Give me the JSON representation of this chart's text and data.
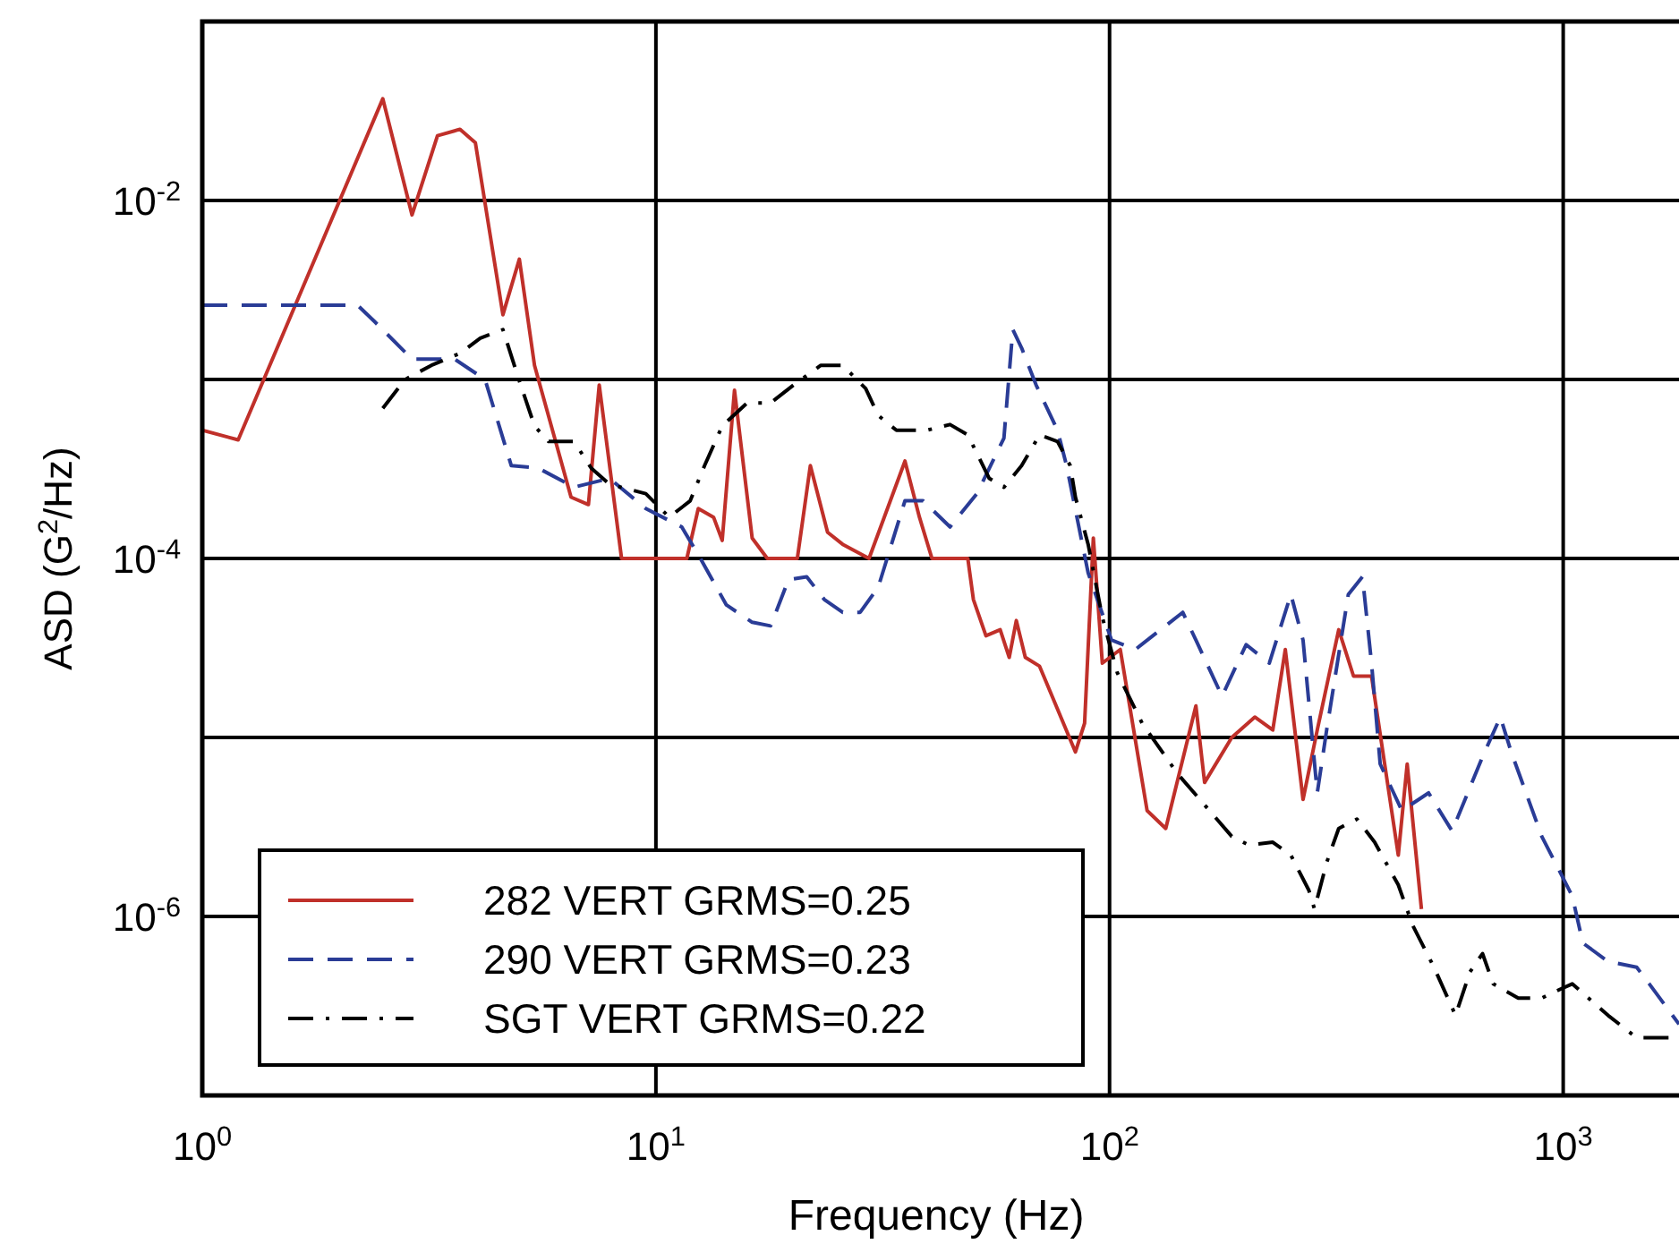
{
  "chart_data": {
    "type": "line",
    "xlabel": "Frequency (Hz)",
    "ylabel": "ASD (G$^{2}$/Hz)",
    "log": "xy",
    "grid": true,
    "legend": "bottom left",
    "xlim": [
      1,
      1800
    ],
    "ylim": [
      1e-07,
      0.1
    ],
    "xticks": [
      {
        "value": 1,
        "label": "10$^{0}$"
      },
      {
        "value": 10,
        "label": "10$^{1}$"
      },
      {
        "value": 100,
        "label": "10$^{2}$"
      },
      {
        "value": 1000,
        "label": "10$^{3}$"
      }
    ],
    "yticks": [
      {
        "value": 1e-06,
        "label": "10$^{-6}$"
      },
      {
        "value": 1e-05,
        "label": null
      },
      {
        "value": 0.0001,
        "label": "10$^{-4}$"
      },
      {
        "value": 0.001,
        "label": null
      },
      {
        "value": 0.01,
        "label": "10$^{-2}$"
      }
    ],
    "series": [
      {
        "name": "282 VERT GRMS=0.25",
        "color": "#c0302a",
        "line_style": "solid",
        "x": [
          1,
          1.2,
          2.5,
          2.9,
          3.3,
          3.7,
          4,
          4.6,
          5,
          5.4,
          6.5,
          7.1,
          7.5,
          8.4,
          11.7,
          12.4,
          13.4,
          14,
          14.9,
          16.3,
          17.6,
          20.5,
          21.9,
          23.9,
          25.8,
          29.5,
          35.4,
          38.1,
          40.6,
          48.7,
          50.1,
          53.4,
          57.4,
          60.1,
          62.3,
          65.2,
          70.1,
          84.1,
          88.1,
          92.1,
          96.4,
          105.6,
          121,
          133,
          155,
          162,
          186,
          209,
          229,
          244,
          267,
          287,
          320,
          345,
          378,
          433,
          453,
          487
        ],
        "values": [
          0.00052,
          0.00046,
          0.037,
          0.0083,
          0.023,
          0.025,
          0.021,
          0.0023,
          0.0047,
          0.0012,
          0.00022,
          0.0002,
          0.00093,
          0.0001,
          0.0001,
          0.00019,
          0.00017,
          0.000126,
          0.00087,
          0.00013,
          0.0001,
          0.0001,
          0.00033,
          0.00014,
          0.00012,
          0.0001,
          0.00035,
          0.00017,
          0.0001,
          0.0001,
          5.9e-05,
          3.7e-05,
          4e-05,
          2.8e-05,
          4.5e-05,
          2.8e-05,
          2.5e-05,
          8.3e-06,
          1.2e-05,
          0.00013,
          2.6e-05,
          3.1e-05,
          3.9e-06,
          3.1e-06,
          1.5e-05,
          5.6e-06,
          1e-05,
          1.3e-05,
          1.1e-05,
          3.1e-05,
          4.5e-06,
          1.1e-05,
          4e-05,
          2.2e-05,
          2.2e-05,
          2.2e-06,
          7.1e-06,
          1.1e-06
        ]
      },
      {
        "name": "290 VERT GRMS=0.23",
        "color": "#2a3c96",
        "line_style": "dashed",
        "x": [
          1,
          2.2,
          2.4,
          2.9,
          3.6,
          4.2,
          4.6,
          4.8,
          5.5,
          6.6,
          7.9,
          9.5,
          11.4,
          12.4,
          14.3,
          16.3,
          17.9,
          19.6,
          21.5,
          23.5,
          25.8,
          28.2,
          30.9,
          35.4,
          38.8,
          44.5,
          51,
          58.5,
          61.2,
          64,
          68.9,
          76.8,
          80.4,
          89.7,
          101,
          114,
          145,
          155,
          177,
          200,
          225,
          251,
          267,
          287,
          301,
          336,
          361,
          378,
          395,
          441,
          505,
          569,
          664,
          727,
          768,
          897,
          1047,
          1105,
          1256,
          1452,
          1548,
          1800
        ],
        "values": [
          0.0026,
          0.0026,
          0.0021,
          0.0013,
          0.0013,
          0.001,
          0.00047,
          0.00033,
          0.00032,
          0.00025,
          0.00028,
          0.00019,
          0.00015,
          0.000105,
          5.5e-05,
          4.4e-05,
          4.2e-05,
          7.6e-05,
          7.9e-05,
          5.9e-05,
          5e-05,
          5e-05,
          6.9e-05,
          0.00021,
          0.00021,
          0.00015,
          0.00023,
          0.00047,
          0.0019,
          0.0015,
          0.00093,
          0.00052,
          0.00033,
          8.3e-05,
          3.5e-05,
          3.1e-05,
          5e-05,
          3.5e-05,
          1.7e-05,
          3.3e-05,
          2.6e-05,
          6.3e-05,
          3.5e-05,
          4.9e-06,
          1.1e-05,
          6.3e-05,
          7.9e-05,
          2.6e-05,
          7.1e-06,
          3.9e-06,
          4.9e-06,
          3e-06,
          7.8e-06,
          1.3e-05,
          8.3e-06,
          2.8e-06,
          1.3e-06,
          7.1e-07,
          5.6e-07,
          5.2e-07,
          4.2e-07,
          2.5e-07
        ]
      },
      {
        "name": "SGT VERT GRMS=0.22",
        "color": "#000000",
        "line_style": "dashdot",
        "x": [
          2.5,
          2.8,
          3.2,
          3.7,
          4.1,
          4.6,
          5,
          5.4,
          5.8,
          6.6,
          7.2,
          7.9,
          9.5,
          10.7,
          11.9,
          12.8,
          14,
          15.9,
          17.9,
          20.1,
          23.1,
          25.8,
          29,
          30.9,
          33.9,
          39.5,
          44.5,
          48.7,
          54.3,
          58.5,
          64,
          70.1,
          76.8,
          81.9,
          84.1,
          89.7,
          96.4,
          104,
          118,
          141,
          186,
          203,
          229,
          251,
          275,
          283,
          301,
          320,
          351,
          384,
          433,
          466,
          519,
          579,
          623,
          664,
          701,
          796,
          897,
          981,
          1047,
          1256,
          1452,
          1742
        ],
        "values": [
          0.00069,
          0.001,
          0.0012,
          0.0014,
          0.0017,
          0.0019,
          0.00098,
          0.00055,
          0.00045,
          0.00045,
          0.00032,
          0.00026,
          0.00023,
          0.00017,
          0.00021,
          0.00033,
          0.00055,
          0.00074,
          0.00074,
          0.00093,
          0.0012,
          0.0012,
          0.00089,
          0.00063,
          0.00052,
          0.00052,
          0.00056,
          0.00049,
          0.00028,
          0.00025,
          0.00033,
          0.00049,
          0.00045,
          0.00033,
          0.00022,
          0.00012,
          4.7e-05,
          2.3e-05,
          1.2e-05,
          6.3e-06,
          2.8e-06,
          2.5e-06,
          2.6e-06,
          2.2e-06,
          1.4e-06,
          1.1e-06,
          2e-06,
          3.1e-06,
          3.5e-06,
          2.6e-06,
          1.5e-06,
          8.9e-07,
          5.2e-07,
          2.8e-07,
          4.9e-07,
          6.2e-07,
          4.2e-07,
          3.5e-07,
          3.5e-07,
          3.9e-07,
          4.2e-07,
          2.8e-07,
          2.1e-07,
          2.1e-07
        ]
      }
    ]
  }
}
